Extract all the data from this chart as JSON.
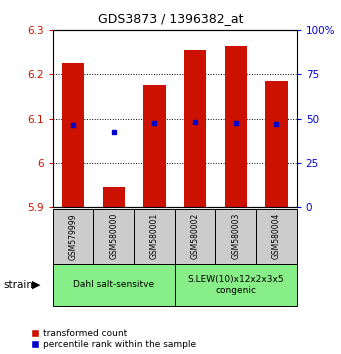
{
  "title": "GDS3873 / 1396382_at",
  "samples": [
    "GSM579999",
    "GSM580000",
    "GSM580001",
    "GSM580002",
    "GSM580003",
    "GSM580004"
  ],
  "bar_bottoms": [
    5.9,
    5.9,
    5.9,
    5.9,
    5.9,
    5.9
  ],
  "bar_tops": [
    6.225,
    5.945,
    6.175,
    6.255,
    6.265,
    6.185
  ],
  "blue_dot_values": [
    6.085,
    6.07,
    6.09,
    6.092,
    6.09,
    6.088
  ],
  "ylim_left": [
    5.9,
    6.3
  ],
  "ylim_right": [
    0,
    100
  ],
  "yticks_left": [
    5.9,
    6.0,
    6.1,
    6.2,
    6.3
  ],
  "yticks_right": [
    0,
    25,
    50,
    75,
    100
  ],
  "ytick_labels_left": [
    "5.9",
    "6",
    "6.1",
    "6.2",
    "6.3"
  ],
  "ytick_labels_right": [
    "0",
    "25",
    "50",
    "75",
    "100%"
  ],
  "bar_color": "#cc1100",
  "dot_color": "#0000cc",
  "group1_label": "Dahl salt-sensitve",
  "group2_label": "S.LEW(10)x12x2x3x5\ncongenic",
  "group1_color": "#88ee88",
  "group2_color": "#88ee88",
  "group1_indices": [
    0,
    1,
    2
  ],
  "group2_indices": [
    3,
    4,
    5
  ],
  "legend_red_label": "transformed count",
  "legend_blue_label": "percentile rank within the sample",
  "strain_label": "strain",
  "sample_box_color": "#cccccc",
  "gridline_y": [
    6.0,
    6.1,
    6.2
  ]
}
